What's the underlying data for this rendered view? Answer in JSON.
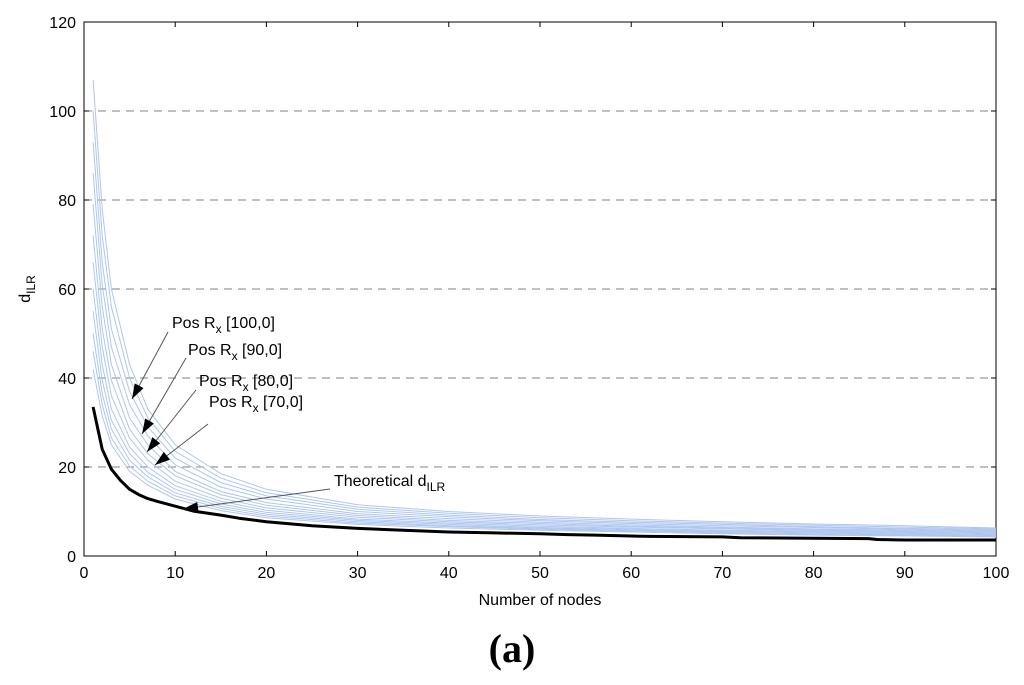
{
  "chart_data": {
    "type": "line",
    "xlabel": "Number of nodes",
    "ylabel": {
      "base": "d",
      "sub": "ILR"
    },
    "xlim": [
      0,
      100
    ],
    "ylim": [
      0,
      120
    ],
    "xticks": [
      0,
      10,
      20,
      30,
      40,
      50,
      60,
      70,
      80,
      90,
      100
    ],
    "yticks": [
      0,
      20,
      40,
      60,
      80,
      100,
      120
    ],
    "grid": "horizontal dashed",
    "colors": {
      "simulated": "#aec6ef",
      "theoretical": "#000000"
    },
    "annotations": [
      {
        "pre": "Pos R",
        "sub": "x",
        "post": " [100,0]",
        "target": [
          6,
          35
        ]
      },
      {
        "pre": "Pos R",
        "sub": "x",
        "post": " [90,0]",
        "target": [
          7,
          27
        ]
      },
      {
        "pre": "Pos R",
        "sub": "x",
        "post": " [80,0]",
        "target": [
          7.5,
          23.5
        ]
      },
      {
        "pre": "Pos R",
        "sub": "x",
        "post": " [70,0]",
        "target": [
          8,
          20.5
        ]
      },
      {
        "pre": "Theoretical d",
        "sub": "ILR",
        "post": "",
        "target": [
          11,
          10.5
        ]
      }
    ],
    "series": [
      {
        "role": "theoretical",
        "x": [
          1,
          2,
          3,
          4,
          5,
          6,
          7,
          8,
          10,
          12,
          15,
          17,
          20,
          25,
          30,
          35,
          40,
          45,
          50,
          53,
          56,
          60,
          62,
          70,
          72,
          80,
          86,
          87,
          90,
          100
        ],
        "y": [
          33.5,
          24,
          19.5,
          17,
          15,
          13.8,
          12.9,
          12.3,
          11.2,
          10.1,
          9.2,
          8.5,
          7.7,
          6.8,
          6.2,
          5.8,
          5.4,
          5.2,
          5.0,
          4.8,
          4.7,
          4.5,
          4.4,
          4.3,
          4.1,
          4.0,
          3.9,
          3.7,
          3.6,
          3.6
        ]
      },
      {
        "role": "simulated",
        "x": [
          1,
          2,
          3,
          5,
          7,
          10,
          15,
          20,
          30,
          40,
          50,
          60,
          70,
          80,
          90,
          100
        ],
        "y": [
          107,
          78,
          60,
          43,
          33,
          25,
          18.5,
          15,
          11.5,
          10,
          9,
          8.3,
          7.7,
          7.2,
          6.8,
          6.3
        ]
      },
      {
        "role": "simulated",
        "x": [
          1,
          2,
          3,
          5,
          7,
          10,
          15,
          20,
          30,
          40,
          50,
          60,
          70,
          80,
          90,
          100
        ],
        "y": [
          100,
          72,
          56,
          40,
          31,
          23.5,
          17.5,
          14.2,
          11,
          9.6,
          8.6,
          7.9,
          7.4,
          6.9,
          6.5,
          6.1
        ]
      },
      {
        "role": "simulated",
        "x": [
          1,
          2,
          3,
          5,
          7,
          10,
          15,
          20,
          30,
          40,
          50,
          60,
          70,
          80,
          90,
          100
        ],
        "y": [
          93,
          66,
          51,
          37,
          29,
          22,
          16.5,
          13.5,
          10.5,
          9.2,
          8.2,
          7.6,
          7.1,
          6.6,
          6.2,
          5.9
        ]
      },
      {
        "role": "simulated",
        "x": [
          1,
          2,
          3,
          5,
          7,
          10,
          15,
          20,
          30,
          40,
          50,
          60,
          70,
          80,
          90,
          100
        ],
        "y": [
          86,
          61,
          47,
          34,
          27,
          20.5,
          15.5,
          12.8,
          10,
          8.8,
          7.9,
          7.3,
          6.8,
          6.4,
          6.0,
          5.7
        ]
      },
      {
        "role": "simulated",
        "x": [
          1,
          2,
          3,
          5,
          7,
          10,
          15,
          20,
          30,
          40,
          50,
          60,
          70,
          80,
          90,
          100
        ],
        "y": [
          79,
          56,
          43,
          31,
          25,
          19,
          14.5,
          12,
          9.5,
          8.4,
          7.6,
          7.0,
          6.5,
          6.1,
          5.8,
          5.5
        ]
      },
      {
        "role": "simulated",
        "x": [
          1,
          2,
          3,
          5,
          7,
          10,
          15,
          20,
          30,
          40,
          50,
          60,
          70,
          80,
          90,
          100
        ],
        "y": [
          72,
          51,
          39.5,
          28.5,
          23,
          18,
          13.8,
          11.4,
          9.1,
          8.0,
          7.3,
          6.7,
          6.3,
          5.9,
          5.6,
          5.3
        ]
      },
      {
        "role": "simulated",
        "x": [
          1,
          2,
          3,
          5,
          7,
          10,
          15,
          20,
          30,
          40,
          50,
          60,
          70,
          80,
          90,
          100
        ],
        "y": [
          66,
          47,
          36,
          26.5,
          21.5,
          16.8,
          13,
          10.8,
          8.7,
          7.7,
          7.0,
          6.5,
          6.1,
          5.7,
          5.4,
          5.1
        ]
      },
      {
        "role": "simulated",
        "x": [
          1,
          2,
          3,
          5,
          7,
          10,
          15,
          20,
          30,
          40,
          50,
          60,
          70,
          80,
          90,
          100
        ],
        "y": [
          60,
          43,
          33,
          24.5,
          20,
          15.8,
          12.3,
          10.3,
          8.3,
          7.4,
          6.7,
          6.2,
          5.8,
          5.5,
          5.2,
          4.9
        ]
      },
      {
        "role": "simulated",
        "x": [
          1,
          2,
          3,
          5,
          7,
          10,
          15,
          20,
          30,
          40,
          50,
          60,
          70,
          80,
          90,
          100
        ],
        "y": [
          55,
          39.5,
          30.5,
          23,
          18.8,
          15,
          11.7,
          9.8,
          8.0,
          7.1,
          6.4,
          6.0,
          5.6,
          5.3,
          5.0,
          4.7
        ]
      },
      {
        "role": "simulated",
        "x": [
          1,
          2,
          3,
          5,
          7,
          10,
          15,
          20,
          30,
          40,
          50,
          60,
          70,
          80,
          90,
          100
        ],
        "y": [
          50,
          36.5,
          28.5,
          21.5,
          17.8,
          14.2,
          11.2,
          9.4,
          7.7,
          6.8,
          6.2,
          5.8,
          5.4,
          5.1,
          4.8,
          4.5
        ]
      },
      {
        "role": "simulated",
        "x": [
          1,
          2,
          3,
          5,
          7,
          10,
          15,
          20,
          30,
          40,
          50,
          60,
          70,
          80,
          90,
          100
        ],
        "y": [
          46,
          34,
          26.5,
          20.2,
          16.8,
          13.5,
          10.7,
          9.0,
          7.4,
          6.6,
          6.0,
          5.6,
          5.2,
          4.9,
          4.6,
          4.4
        ]
      },
      {
        "role": "simulated",
        "x": [
          1,
          2,
          3,
          5,
          7,
          10,
          15,
          20,
          30,
          40,
          50,
          60,
          70,
          80,
          90,
          100
        ],
        "y": [
          42,
          31.5,
          25,
          19,
          15.9,
          12.8,
          10.2,
          8.6,
          7.1,
          6.3,
          5.8,
          5.4,
          5.0,
          4.7,
          4.5,
          4.3
        ]
      }
    ]
  },
  "panel_label": "(a)"
}
